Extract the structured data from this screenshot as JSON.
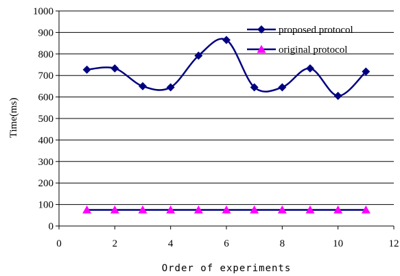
{
  "chart_data": {
    "type": "line",
    "title": "",
    "xlabel": "Order of experiments",
    "ylabel": "Time(ms)",
    "xlim": [
      0,
      12
    ],
    "ylim": [
      0,
      1000
    ],
    "x_ticks": [
      "0",
      "2",
      "4",
      "6",
      "8",
      "10",
      "12"
    ],
    "y_ticks": [
      "0",
      "100",
      "200",
      "300",
      "400",
      "500",
      "600",
      "700",
      "800",
      "900",
      "1000"
    ],
    "grid": "horizontal",
    "legend_position": "top-right",
    "x": [
      1,
      2,
      3,
      4,
      5,
      6,
      7,
      8,
      9,
      10,
      11
    ],
    "series": [
      {
        "name": "proposed protocol",
        "values": [
          727,
          733,
          650,
          645,
          792,
          865,
          645,
          645,
          733,
          605,
          718
        ],
        "color": "#000080",
        "marker": "diamond",
        "smooth": true
      },
      {
        "name": "original protocol",
        "values": [
          75,
          75,
          75,
          75,
          75,
          75,
          75,
          75,
          75,
          75,
          75
        ],
        "color": "#000080",
        "marker_color": "#ff00ff",
        "marker": "triangle",
        "smooth": false
      }
    ]
  }
}
